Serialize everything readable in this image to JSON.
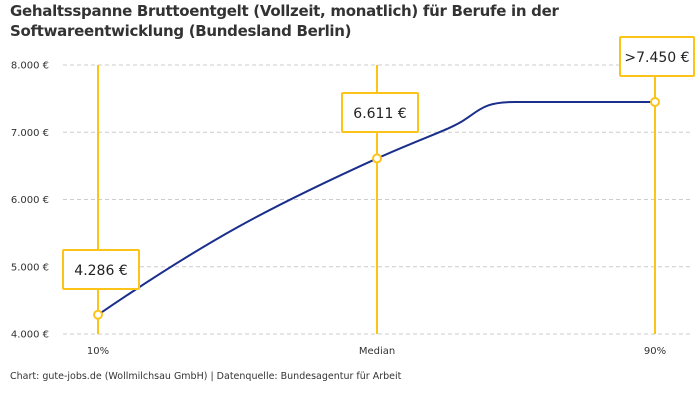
{
  "title": "Gehaltsspanne Bruttoentgelt (Vollzeit, monatlich) für Berufe in der Softwareentwicklung (Bundesland Berlin)",
  "footer": "Chart: gute-jobs.de (Wollmilchsau GmbH) | Datenquelle: Bundesagentur für Arbeit",
  "colors": {
    "line": "#1a2e8c",
    "marker": "#fcc419",
    "grid": "#cccccc"
  },
  "chart_data": {
    "type": "line",
    "title": "Gehaltsspanne Bruttoentgelt (Vollzeit, monatlich) für Berufe in der Softwareentwicklung (Bundesland Berlin)",
    "categories": [
      "10%",
      "Median",
      "90%"
    ],
    "values": [
      4286,
      6611,
      7450
    ],
    "data_labels": [
      "4.286 €",
      "6.611 €",
      ">7.450 €"
    ],
    "ylim": [
      4000,
      8000
    ],
    "yticks": [
      4000,
      5000,
      6000,
      7000,
      8000
    ],
    "ytick_labels": [
      "4.000 €",
      "5.000 €",
      "6.000 €",
      "7.000 €",
      "8.000 €"
    ],
    "grid": "horizontal dashed",
    "xlabel": "",
    "ylabel": ""
  }
}
